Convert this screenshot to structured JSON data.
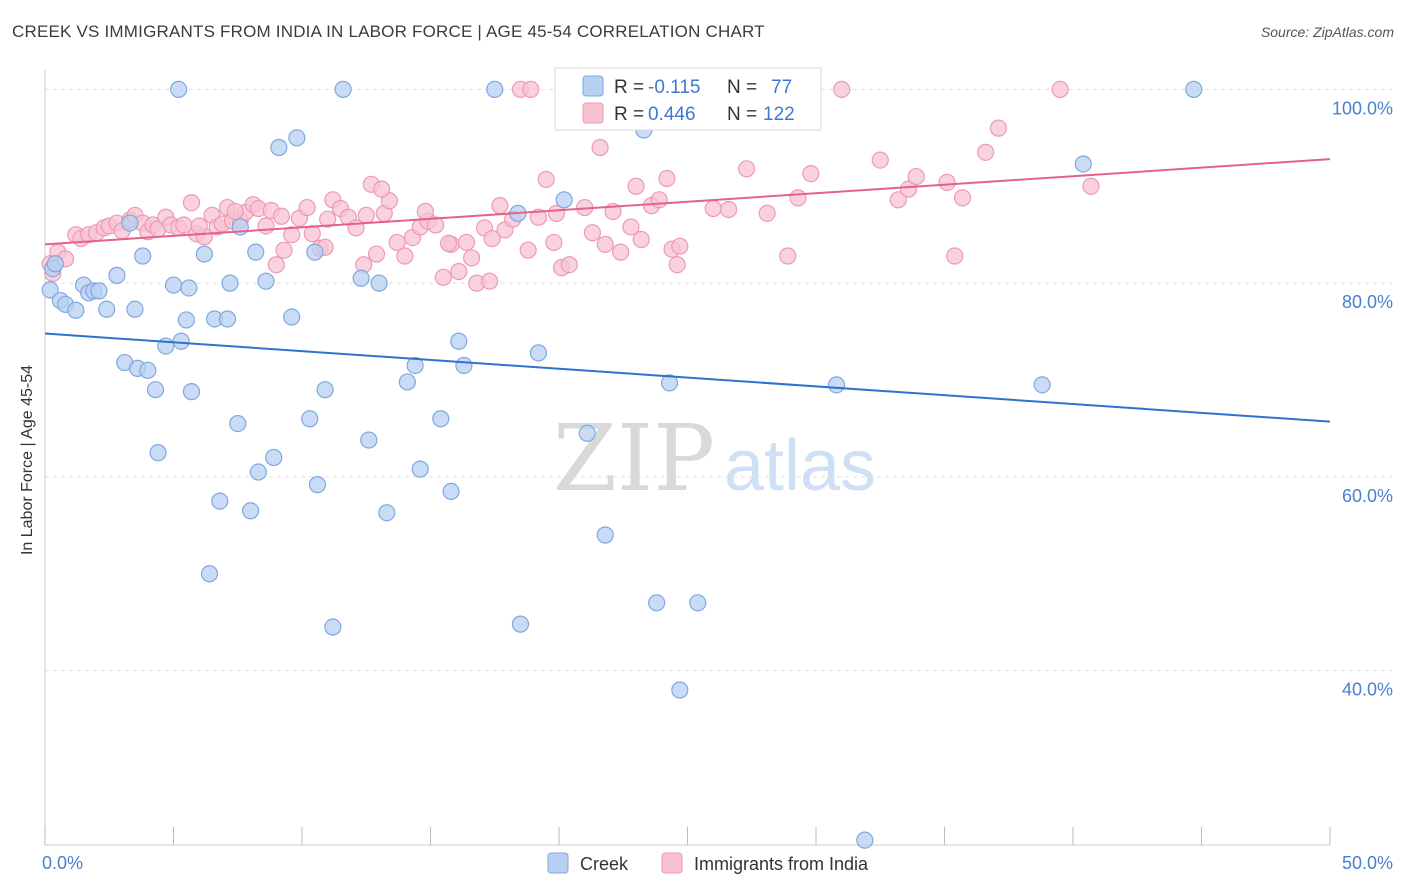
{
  "header": {
    "title": "CREEK VS IMMIGRANTS FROM INDIA IN LABOR FORCE | AGE 45-54 CORRELATION CHART",
    "source": "Source: ZipAtlas.com"
  },
  "watermark": {
    "zip": "ZIP",
    "atlas": "atlas"
  },
  "stats_box": {
    "rows": [
      {
        "r_label": "R =",
        "r_value": "-0.115",
        "n_label": "N =",
        "n_value": "77"
      },
      {
        "r_label": "R =",
        "r_value": "0.446",
        "n_label": "N =",
        "n_value": "122"
      }
    ]
  },
  "legend": {
    "items": [
      "Creek",
      "Immigrants from India"
    ]
  },
  "colors": {
    "creek_fill": "#b8d0f2",
    "creek_stroke": "#7fa8e0",
    "creek_line": "#2e72cc",
    "india_fill": "#f7c3d3",
    "india_stroke": "#ee9ab4",
    "india_line": "#e5608c",
    "tick_label": "#4a7fd0",
    "grid": "#dddddd"
  },
  "chart_data": {
    "type": "scatter",
    "title": "CREEK VS IMMIGRANTS FROM INDIA IN LABOR FORCE | AGE 45-54 CORRELATION CHART",
    "xlabel": "",
    "ylabel": "In Labor Force | Age 45-54",
    "xlim": [
      0,
      50
    ],
    "ylim": [
      22,
      102
    ],
    "x_tick_labels": [
      {
        "value": 0,
        "label": "0.0%"
      },
      {
        "value": 50,
        "label": "50.0%"
      }
    ],
    "y_tick_labels": [
      {
        "value": 100,
        "label": "100.0%"
      },
      {
        "value": 80,
        "label": "80.0%"
      },
      {
        "value": 60,
        "label": "60.0%"
      },
      {
        "value": 40,
        "label": "40.0%"
      }
    ],
    "grid": true,
    "legend_position": "bottom-center",
    "series": [
      {
        "name": "Creek",
        "r": -0.115,
        "n": 77,
        "trend": {
          "x": [
            0,
            50
          ],
          "y": [
            74.8,
            65.7
          ]
        },
        "points": [
          [
            0.2,
            79.3
          ],
          [
            0.3,
            81.5
          ],
          [
            0.4,
            82.0
          ],
          [
            0.6,
            78.2
          ],
          [
            0.8,
            77.8
          ],
          [
            1.2,
            77.2
          ],
          [
            1.5,
            79.8
          ],
          [
            1.7,
            79.0
          ],
          [
            1.9,
            79.2
          ],
          [
            2.1,
            79.2
          ],
          [
            2.4,
            77.3
          ],
          [
            2.8,
            80.8
          ],
          [
            3.3,
            86.2
          ],
          [
            3.8,
            82.8
          ],
          [
            3.5,
            77.3
          ],
          [
            3.1,
            71.8
          ],
          [
            3.6,
            71.2
          ],
          [
            4.0,
            71.0
          ],
          [
            4.3,
            69.0
          ],
          [
            4.4,
            62.5
          ],
          [
            4.7,
            73.5
          ],
          [
            5.0,
            79.8
          ],
          [
            5.2,
            100.0
          ],
          [
            5.3,
            74.0
          ],
          [
            5.5,
            76.2
          ],
          [
            5.7,
            68.8
          ],
          [
            6.2,
            83.0
          ],
          [
            6.4,
            50.0
          ],
          [
            6.6,
            76.3
          ],
          [
            6.8,
            57.5
          ],
          [
            7.2,
            80.0
          ],
          [
            7.1,
            76.3
          ],
          [
            7.5,
            65.5
          ],
          [
            7.6,
            85.8
          ],
          [
            8.0,
            56.5
          ],
          [
            8.2,
            83.2
          ],
          [
            8.3,
            60.5
          ],
          [
            8.6,
            80.2
          ],
          [
            8.9,
            62.0
          ],
          [
            9.1,
            94.0
          ],
          [
            9.6,
            76.5
          ],
          [
            9.8,
            95.0
          ],
          [
            10.3,
            66.0
          ],
          [
            10.5,
            83.2
          ],
          [
            10.6,
            59.2
          ],
          [
            10.9,
            69.0
          ],
          [
            11.2,
            44.5
          ],
          [
            11.6,
            100.0
          ],
          [
            12.6,
            63.8
          ],
          [
            13.0,
            80.0
          ],
          [
            13.3,
            56.3
          ],
          [
            14.1,
            69.8
          ],
          [
            14.4,
            71.5
          ],
          [
            14.6,
            60.8
          ],
          [
            15.4,
            66.0
          ],
          [
            15.8,
            58.5
          ],
          [
            16.1,
            74.0
          ],
          [
            16.3,
            71.5
          ],
          [
            17.5,
            100.0
          ],
          [
            18.4,
            87.2
          ],
          [
            18.5,
            44.8
          ],
          [
            19.2,
            72.8
          ],
          [
            20.2,
            88.6
          ],
          [
            21.1,
            64.5
          ],
          [
            21.8,
            54.0
          ],
          [
            23.3,
            95.8
          ],
          [
            23.8,
            47.0
          ],
          [
            24.3,
            69.7
          ],
          [
            24.7,
            38.0
          ],
          [
            25.4,
            47.0
          ],
          [
            30.8,
            69.5
          ],
          [
            31.9,
            22.5
          ],
          [
            38.8,
            69.5
          ],
          [
            40.4,
            92.3
          ],
          [
            44.7,
            100.0
          ],
          [
            5.6,
            79.5
          ],
          [
            12.3,
            80.5
          ]
        ]
      },
      {
        "name": "Immigrants from India",
        "r": 0.446,
        "n": 122,
        "trend": {
          "x": [
            0,
            50
          ],
          "y": [
            84.0,
            92.8
          ]
        },
        "points": [
          [
            0.2,
            82.0
          ],
          [
            0.3,
            81.0
          ],
          [
            0.5,
            83.2
          ],
          [
            0.8,
            82.5
          ],
          [
            1.2,
            85.0
          ],
          [
            1.4,
            84.6
          ],
          [
            1.7,
            85.0
          ],
          [
            2.0,
            85.2
          ],
          [
            2.3,
            85.7
          ],
          [
            2.5,
            85.9
          ],
          [
            2.8,
            86.2
          ],
          [
            3.0,
            85.4
          ],
          [
            3.3,
            86.5
          ],
          [
            3.5,
            87.0
          ],
          [
            3.8,
            86.2
          ],
          [
            4.0,
            85.3
          ],
          [
            4.2,
            86.0
          ],
          [
            4.4,
            85.6
          ],
          [
            4.7,
            86.8
          ],
          [
            4.9,
            86.0
          ],
          [
            5.2,
            85.7
          ],
          [
            5.4,
            86.0
          ],
          [
            5.7,
            88.3
          ],
          [
            5.9,
            85.1
          ],
          [
            6.2,
            84.8
          ],
          [
            6.5,
            87.0
          ],
          [
            6.7,
            85.8
          ],
          [
            6.9,
            86.1
          ],
          [
            7.1,
            87.8
          ],
          [
            7.3,
            86.4
          ],
          [
            7.6,
            86.5
          ],
          [
            7.8,
            87.3
          ],
          [
            8.1,
            88.1
          ],
          [
            8.3,
            87.7
          ],
          [
            8.6,
            85.9
          ],
          [
            8.8,
            87.5
          ],
          [
            9.0,
            81.9
          ],
          [
            9.3,
            83.4
          ],
          [
            9.6,
            85.0
          ],
          [
            9.9,
            86.7
          ],
          [
            10.2,
            87.8
          ],
          [
            10.4,
            85.1
          ],
          [
            10.7,
            83.6
          ],
          [
            11.0,
            86.6
          ],
          [
            11.2,
            88.6
          ],
          [
            11.5,
            87.7
          ],
          [
            11.8,
            86.8
          ],
          [
            12.1,
            85.7
          ],
          [
            12.4,
            81.9
          ],
          [
            12.7,
            90.2
          ],
          [
            12.9,
            83.0
          ],
          [
            13.2,
            87.2
          ],
          [
            13.4,
            88.5
          ],
          [
            13.7,
            84.2
          ],
          [
            14.0,
            82.8
          ],
          [
            14.3,
            84.7
          ],
          [
            14.6,
            85.8
          ],
          [
            14.9,
            86.4
          ],
          [
            15.2,
            86.0
          ],
          [
            15.5,
            80.6
          ],
          [
            15.8,
            84.0
          ],
          [
            16.1,
            81.2
          ],
          [
            16.4,
            84.2
          ],
          [
            16.8,
            80.0
          ],
          [
            17.1,
            85.7
          ],
          [
            17.4,
            84.6
          ],
          [
            17.7,
            88.0
          ],
          [
            17.9,
            85.5
          ],
          [
            18.2,
            86.6
          ],
          [
            18.5,
            100.0
          ],
          [
            18.9,
            100.0
          ],
          [
            19.2,
            86.8
          ],
          [
            19.5,
            90.7
          ],
          [
            19.8,
            84.2
          ],
          [
            20.1,
            81.6
          ],
          [
            20.4,
            81.9
          ],
          [
            21.0,
            87.8
          ],
          [
            21.3,
            85.2
          ],
          [
            21.6,
            94.0
          ],
          [
            22.1,
            87.4
          ],
          [
            22.8,
            85.8
          ],
          [
            23.2,
            84.5
          ],
          [
            23.6,
            88.0
          ],
          [
            23.9,
            88.6
          ],
          [
            24.2,
            90.8
          ],
          [
            24.4,
            83.5
          ],
          [
            24.7,
            83.8
          ],
          [
            26.0,
            87.7
          ],
          [
            26.6,
            87.6
          ],
          [
            27.3,
            91.8
          ],
          [
            28.1,
            87.2
          ],
          [
            28.9,
            82.8
          ],
          [
            29.3,
            88.8
          ],
          [
            29.8,
            91.3
          ],
          [
            31.0,
            100.0
          ],
          [
            32.5,
            92.7
          ],
          [
            33.2,
            88.6
          ],
          [
            33.6,
            89.7
          ],
          [
            33.9,
            91.0
          ],
          [
            35.1,
            90.4
          ],
          [
            35.4,
            82.8
          ],
          [
            35.7,
            88.8
          ],
          [
            36.6,
            93.5
          ],
          [
            37.1,
            96.0
          ],
          [
            39.5,
            100.0
          ],
          [
            40.7,
            90.0
          ],
          [
            6.0,
            85.9
          ],
          [
            7.4,
            87.4
          ],
          [
            9.2,
            86.9
          ],
          [
            10.9,
            83.7
          ],
          [
            12.5,
            87.0
          ],
          [
            13.1,
            89.7
          ],
          [
            14.8,
            87.4
          ],
          [
            15.7,
            84.1
          ],
          [
            16.6,
            82.6
          ],
          [
            17.3,
            80.2
          ],
          [
            18.8,
            83.4
          ],
          [
            19.9,
            87.2
          ],
          [
            21.8,
            84.0
          ],
          [
            22.4,
            83.2
          ],
          [
            23.0,
            90.0
          ],
          [
            24.6,
            81.9
          ]
        ]
      }
    ]
  }
}
